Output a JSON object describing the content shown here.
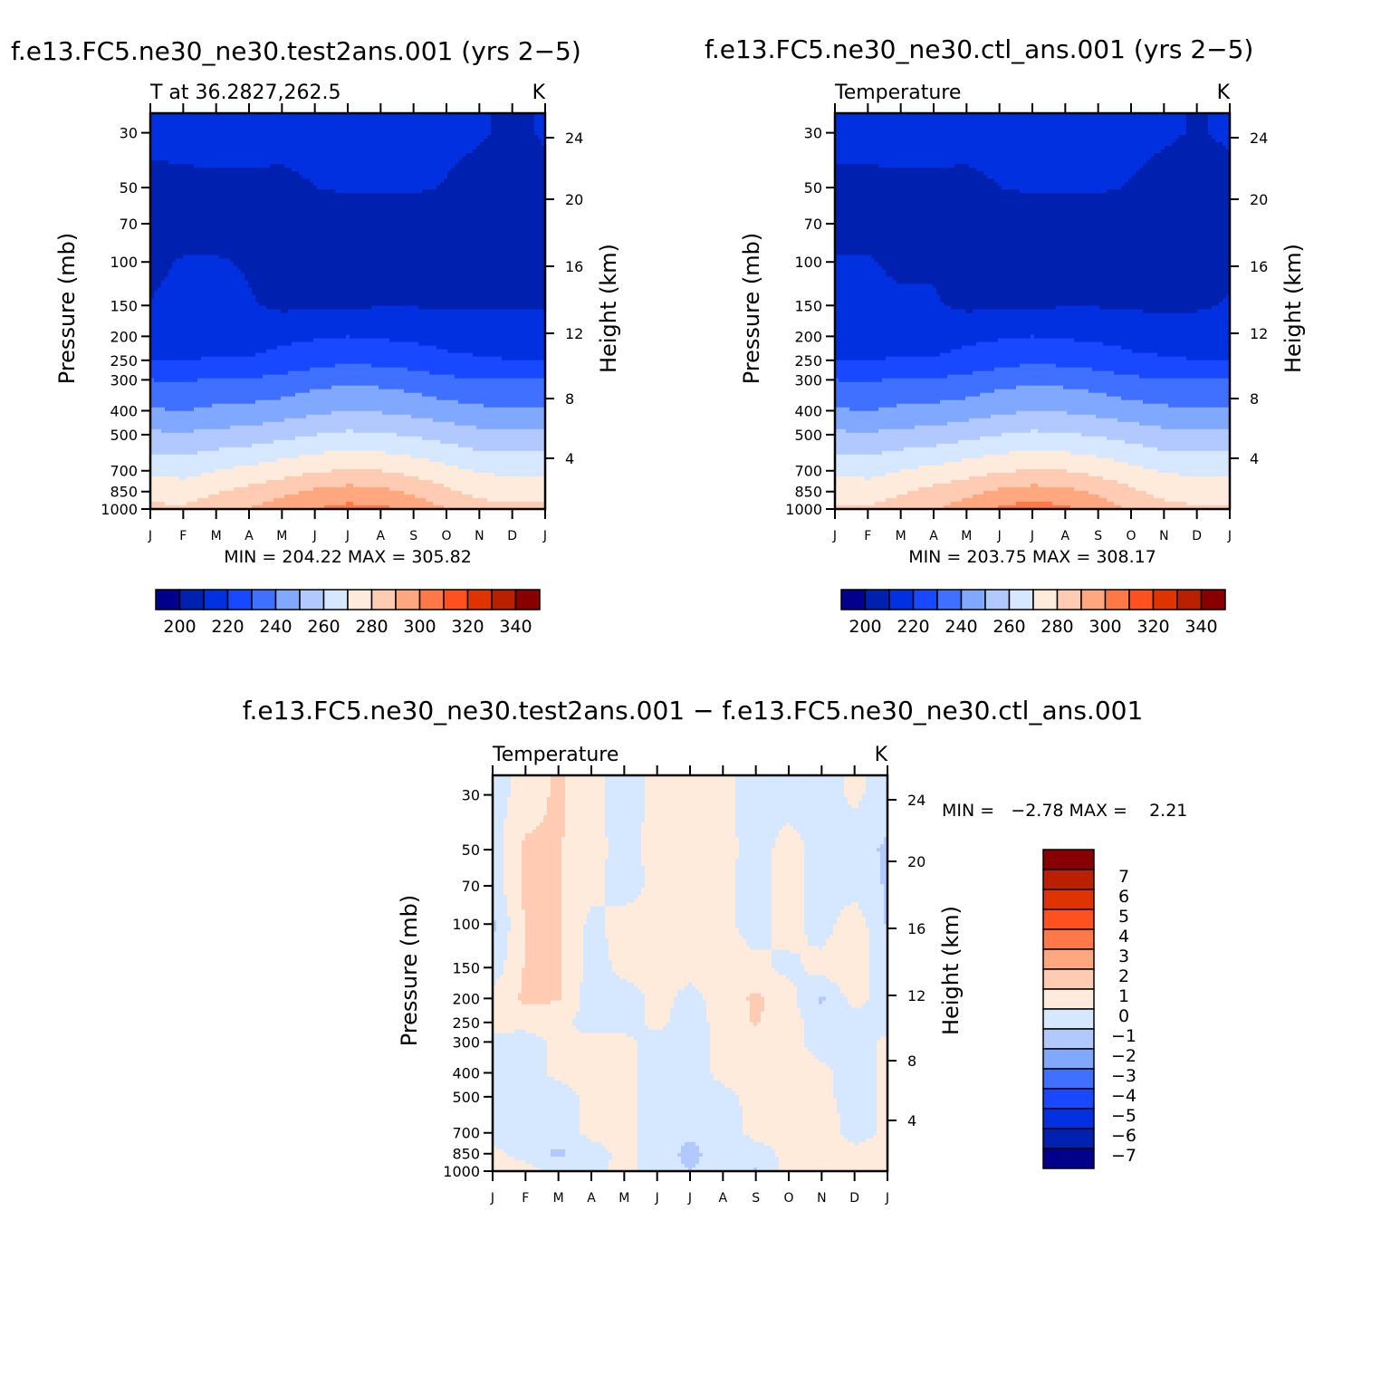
{
  "chart_data": [
    {
      "type": "heatmap",
      "subtype": "filled-contour",
      "title": "f.e13.FC5.ne30_ne30.test2ans.001 (yrs 2−5)",
      "left_subtitle": "T at 36.2827,262.5",
      "right_subtitle": "K",
      "ylabel": "Pressure (mb)",
      "ylabel_right": "Height (km)",
      "stats": "MIN = 204.22 MAX = 305.82",
      "x_ticks": [
        "J",
        "F",
        "M",
        "A",
        "M",
        "J",
        "J",
        "A",
        "S",
        "O",
        "N",
        "D",
        "J"
      ],
      "y_ticks": [
        30,
        50,
        70,
        100,
        150,
        200,
        250,
        300,
        400,
        500,
        700,
        850,
        1000
      ],
      "y_right_ticks": [
        4,
        8,
        12,
        16,
        20,
        24
      ],
      "y_scale": "log-pressure",
      "ylim": [
        1000,
        25
      ],
      "levels_mb": [
        30,
        50,
        70,
        100,
        150,
        200,
        250,
        300,
        400,
        500,
        700,
        850,
        1000
      ],
      "values": [
        [
          212,
          212,
          212,
          212,
          212,
          212,
          213,
          213,
          213,
          212,
          211,
          208,
          211
        ],
        [
          208,
          208.5,
          209,
          209,
          208.5,
          210,
          211,
          211,
          211,
          209.5,
          207,
          205,
          207
        ],
        [
          205,
          205,
          205,
          205,
          205,
          205,
          205,
          205,
          205,
          205,
          205,
          205,
          205
        ],
        [
          207,
          211,
          211,
          209,
          205,
          205,
          205,
          205,
          205,
          205,
          205,
          205,
          205
        ],
        [
          210.5,
          214,
          214,
          211,
          208,
          209,
          209,
          209.5,
          209.5,
          209,
          209,
          209.5,
          209.5
        ],
        [
          216,
          216,
          216,
          216,
          218,
          219,
          220,
          219,
          218,
          217,
          216,
          216,
          216
        ],
        [
          220,
          219.5,
          221,
          220.5,
          223,
          226,
          228,
          227,
          225,
          222,
          221,
          220,
          220
        ],
        [
          230,
          229,
          231,
          231,
          233,
          236,
          238,
          237,
          235,
          232,
          231,
          230,
          230
        ],
        [
          241,
          240,
          242,
          243,
          245,
          248,
          250,
          249,
          247,
          244,
          242,
          241,
          241
        ],
        [
          252,
          251,
          253,
          254,
          257,
          260,
          262,
          261,
          259,
          256,
          253,
          252,
          252
        ],
        [
          268,
          267,
          270,
          273,
          276,
          279,
          281,
          280,
          277,
          273,
          269,
          268,
          268
        ],
        [
          276,
          275,
          279,
          283,
          287,
          292,
          294,
          293,
          288,
          282,
          277,
          276,
          276
        ],
        [
          282,
          282,
          286,
          290,
          296,
          300,
          303,
          302,
          297,
          290,
          284,
          282,
          282
        ]
      ],
      "contour_levels": [
        200,
        210,
        220,
        230,
        240,
        250,
        260,
        270,
        280,
        290,
        300,
        310,
        320,
        330,
        340
      ],
      "colorbar_labels": [
        "200",
        "220",
        "240",
        "260",
        "280",
        "300",
        "320",
        "340"
      ],
      "colorbar_orientation": "horizontal"
    },
    {
      "type": "heatmap",
      "subtype": "filled-contour",
      "title": "f.e13.FC5.ne30_ne30.ctl_ans.001 (yrs 2−5)",
      "left_subtitle": "Temperature",
      "right_subtitle": "K",
      "ylabel": "Pressure (mb)",
      "ylabel_right": "Height (km)",
      "stats": "MIN = 203.75 MAX = 308.17",
      "x_ticks": [
        "J",
        "F",
        "M",
        "A",
        "M",
        "J",
        "J",
        "A",
        "S",
        "O",
        "N",
        "D",
        "J"
      ],
      "y_ticks": [
        30,
        50,
        70,
        100,
        150,
        200,
        250,
        300,
        400,
        500,
        700,
        850,
        1000
      ],
      "y_right_ticks": [
        4,
        8,
        12,
        16,
        20,
        24
      ],
      "y_scale": "log-pressure",
      "ylim": [
        1000,
        25
      ],
      "levels_mb": [
        30,
        50,
        70,
        100,
        150,
        200,
        250,
        300,
        400,
        500,
        700,
        850,
        1000
      ],
      "values": [
        [
          212,
          212,
          212,
          212,
          212,
          212,
          213,
          213,
          213,
          212,
          211,
          209.5,
          211
        ],
        [
          208.5,
          208.5,
          209,
          209,
          208.5,
          210,
          211,
          211,
          211,
          209.5,
          207.5,
          206.5,
          208
        ],
        [
          205,
          205,
          205,
          205,
          205,
          205,
          205,
          205,
          205,
          205,
          205,
          205,
          205
        ],
        [
          211,
          211,
          208,
          209,
          205,
          205,
          205,
          205,
          205,
          205,
          205,
          205,
          208
        ],
        [
          211,
          211.5,
          212,
          211,
          208,
          209,
          209,
          209.5,
          209.5,
          208.5,
          208.5,
          208.5,
          211
        ],
        [
          216,
          216,
          216,
          216,
          218,
          219,
          220,
          219,
          218,
          217,
          216,
          216,
          216
        ],
        [
          220,
          219.5,
          221,
          220.5,
          223,
          226,
          228,
          227,
          225,
          222,
          221,
          220,
          220
        ],
        [
          230,
          229,
          231,
          231,
          233,
          236,
          238,
          237,
          235,
          232,
          231,
          230,
          230
        ],
        [
          241,
          240,
          242,
          243,
          245,
          248,
          250,
          249,
          247,
          244,
          242,
          241,
          241
        ],
        [
          252,
          251,
          253,
          254,
          257,
          260,
          262,
          261,
          259,
          256,
          253,
          252,
          252
        ],
        [
          268,
          267,
          270,
          273,
          276,
          279,
          281,
          280,
          277,
          273,
          269,
          268,
          268
        ],
        [
          276,
          275,
          279,
          283,
          287,
          292,
          294,
          293,
          288,
          282,
          277,
          276,
          276
        ],
        [
          281,
          281,
          285,
          289,
          295,
          301,
          305,
          302,
          296,
          289,
          283,
          281,
          281
        ]
      ],
      "contour_levels": [
        200,
        210,
        220,
        230,
        240,
        250,
        260,
        270,
        280,
        290,
        300,
        310,
        320,
        330,
        340
      ],
      "colorbar_labels": [
        "200",
        "220",
        "240",
        "260",
        "280",
        "300",
        "320",
        "340"
      ],
      "colorbar_orientation": "horizontal"
    },
    {
      "type": "heatmap",
      "subtype": "filled-contour",
      "title": "f.e13.FC5.ne30_ne30.test2ans.001 − f.e13.FC5.ne30_ne30.ctl_ans.001",
      "left_subtitle": "Temperature",
      "right_subtitle": "K",
      "ylabel": "Pressure (mb)",
      "ylabel_right": "Height (km)",
      "stats": "MIN =   −2.78 MAX =    2.21",
      "x_ticks": [
        "J",
        "F",
        "M",
        "A",
        "M",
        "J",
        "J",
        "A",
        "S",
        "O",
        "N",
        "D",
        "J"
      ],
      "y_ticks": [
        30,
        50,
        70,
        100,
        150,
        200,
        250,
        300,
        400,
        500,
        700,
        850,
        1000
      ],
      "y_right_ticks": [
        4,
        8,
        12,
        16,
        20,
        24
      ],
      "y_scale": "log-pressure",
      "ylim": [
        1000,
        25
      ],
      "levels_mb": [
        30,
        50,
        70,
        100,
        150,
        200,
        250,
        300,
        400,
        500,
        700,
        850,
        1000
      ],
      "values": [
        [
          -0.5,
          0.5,
          1.2,
          0.3,
          -0.5,
          0.3,
          0.3,
          0.3,
          -0.5,
          -0.5,
          -0.5,
          0.2,
          -0.5
        ],
        [
          -0.5,
          1.2,
          1.1,
          0.3,
          -0.3,
          0.3,
          0.4,
          0.4,
          -0.5,
          0.5,
          -0.5,
          -0.5,
          -1.2
        ],
        [
          -0.6,
          1.2,
          1.1,
          0.3,
          -0.5,
          0.3,
          0.5,
          0.3,
          -0.5,
          0.5,
          -0.5,
          -0.5,
          -1.1
        ],
        [
          -1.2,
          1.1,
          1.2,
          -0.3,
          0.5,
          0.4,
          0.3,
          0.3,
          -0.5,
          0.5,
          -0.5,
          0.7,
          -1.1
        ],
        [
          -0.6,
          1.1,
          1.2,
          -0.5,
          0.3,
          0.4,
          0.3,
          0.5,
          0.3,
          -0.3,
          0.4,
          0.9,
          -1.0
        ],
        [
          0.3,
          1.2,
          1.1,
          -0.5,
          -0.5,
          0.3,
          -0.3,
          0.4,
          1.2,
          0.4,
          -1.2,
          0.4,
          -0.5
        ],
        [
          0.3,
          0.4,
          0.3,
          -0.5,
          -0.5,
          0.3,
          -0.5,
          0.4,
          1.1,
          0.4,
          -0.5,
          -0.5,
          -0.5
        ],
        [
          -0.3,
          -0.5,
          0.3,
          0.3,
          0.3,
          -0.5,
          -0.5,
          0.3,
          0.4,
          0.4,
          -0.5,
          -0.5,
          0.3
        ],
        [
          -0.5,
          -0.5,
          0.3,
          0.3,
          0.3,
          -0.5,
          -0.5,
          0.3,
          0.3,
          0.3,
          0.3,
          -0.5,
          0.3
        ],
        [
          -0.5,
          -0.5,
          -0.5,
          0.3,
          0.4,
          -0.5,
          -0.5,
          -0.3,
          0.3,
          0.3,
          0.3,
          -0.5,
          0.3
        ],
        [
          -0.5,
          -0.5,
          -0.6,
          0.3,
          0.3,
          -0.5,
          -0.8,
          -0.5,
          0.3,
          0.3,
          0.8,
          -0.5,
          0.3
        ],
        [
          0.3,
          -0.5,
          -1.2,
          -0.5,
          0.3,
          -0.5,
          -1.3,
          -0.5,
          -0.5,
          0.3,
          0.8,
          0.4,
          0.3
        ],
        [
          1.1,
          0.5,
          -0.5,
          -0.3,
          0.3,
          -0.5,
          -1.0,
          -0.5,
          -1.1,
          0.4,
          0.6,
          0.5,
          0.3
        ]
      ],
      "contour_levels": [
        -7,
        -6,
        -5,
        -4,
        -3,
        -2,
        -1,
        0,
        1,
        2,
        3,
        4,
        5,
        6,
        7
      ],
      "colorbar_labels": [
        "7",
        "6",
        "5",
        "4",
        "3",
        "2",
        "1",
        "0",
        "−1",
        "−2",
        "−3",
        "−4",
        "−5",
        "−6",
        "−7"
      ],
      "colorbar_orientation": "vertical"
    }
  ],
  "colors": [
    "#00008c",
    "#0020b0",
    "#0030e0",
    "#1848ff",
    "#4070ff",
    "#80a8ff",
    "#b2c9ff",
    "#d6e8ff",
    "#ffebdc",
    "#ffcbb2",
    "#ffa880",
    "#ff7848",
    "#ff5020",
    "#e03400",
    "#b82000",
    "#880000"
  ]
}
